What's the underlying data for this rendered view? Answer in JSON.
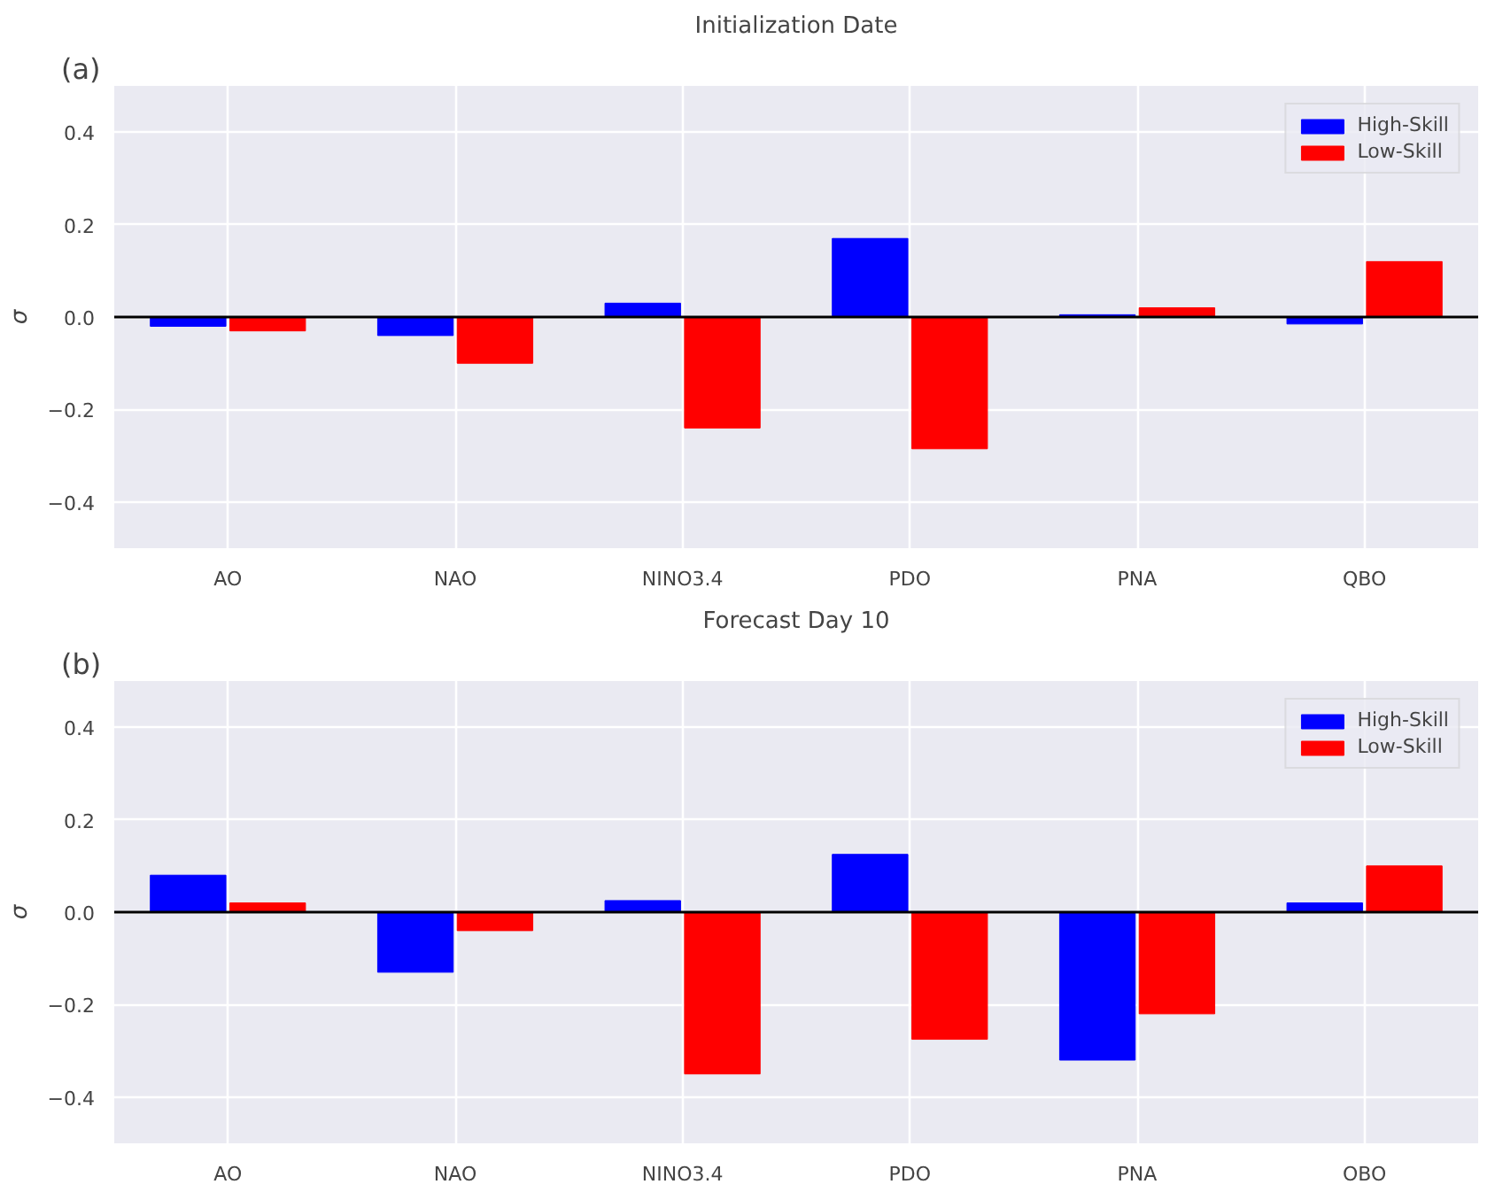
{
  "chart_data": [
    {
      "type": "bar",
      "title": "Initialization Date",
      "annotations": [
        "(a)"
      ],
      "ylabel": "σ",
      "categories": [
        "AO",
        "NAO",
        "NINO3.4",
        "PDO",
        "PNA",
        "QBO"
      ],
      "series": [
        {
          "name": "High-Skill",
          "color": "#0000ff",
          "values": [
            -0.02,
            -0.04,
            0.03,
            0.17,
            0.005,
            -0.015
          ]
        },
        {
          "name": "Low-Skill",
          "color": "#ff0000",
          "values": [
            -0.03,
            -0.1,
            -0.24,
            -0.285,
            0.02,
            0.12
          ]
        }
      ],
      "ylim": [
        -0.5,
        0.5
      ],
      "yticks": [
        {
          "value": -0.4,
          "label": "−0.4"
        },
        {
          "value": -0.2,
          "label": "−0.2"
        },
        {
          "value": 0,
          "label": "0.0"
        },
        {
          "value": 0.2,
          "label": "0.2"
        },
        {
          "value": 0.4,
          "label": "0.4"
        }
      ],
      "ref_lines": [
        {
          "axis": "y",
          "value": 0,
          "color": "#000000"
        }
      ],
      "grid": true,
      "legend": "top right"
    },
    {
      "type": "bar",
      "title": "Forecast Day 10",
      "annotations": [
        "(b)"
      ],
      "ylabel": "σ",
      "categories": [
        "AO",
        "NAO",
        "NINO3.4",
        "PDO",
        "PNA",
        "OBO"
      ],
      "series": [
        {
          "name": "High-Skill",
          "color": "#0000ff",
          "values": [
            0.08,
            -0.13,
            0.025,
            0.125,
            -0.32,
            0.02
          ]
        },
        {
          "name": "Low-Skill",
          "color": "#ff0000",
          "values": [
            0.02,
            -0.04,
            -0.35,
            -0.275,
            -0.22,
            0.1
          ]
        }
      ],
      "ylim": [
        -0.5,
        0.5
      ],
      "yticks": [
        {
          "value": -0.4,
          "label": "−0.4"
        },
        {
          "value": -0.2,
          "label": "−0.2"
        },
        {
          "value": 0,
          "label": "0.0"
        },
        {
          "value": 0.2,
          "label": "0.2"
        },
        {
          "value": 0.4,
          "label": "0.4"
        }
      ],
      "ref_lines": [
        {
          "axis": "y",
          "value": 0,
          "color": "#000000"
        }
      ],
      "grid": true,
      "legend": "top right"
    }
  ]
}
